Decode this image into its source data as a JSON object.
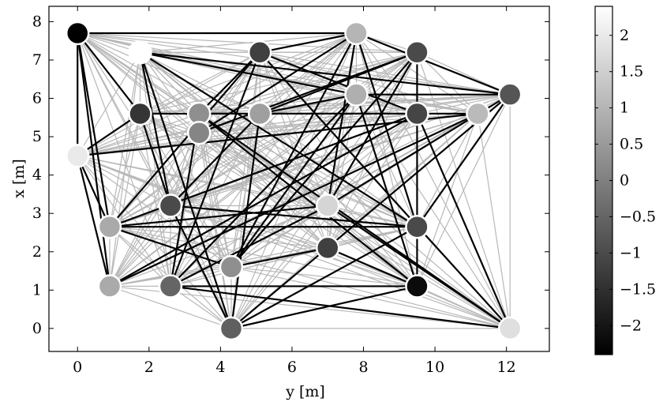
{
  "chart_data": {
    "type": "scatter",
    "xlabel": "y [m]",
    "ylabel": "x [m]",
    "xlim": [
      -0.8,
      13.2
    ],
    "ylim": [
      -0.6,
      8.4
    ],
    "xticks": [
      "0",
      "2",
      "4",
      "6",
      "8",
      "10",
      "12"
    ],
    "yticks": [
      "0",
      "1",
      "2",
      "3",
      "4",
      "5",
      "6",
      "7",
      "8"
    ],
    "grid": false,
    "colorbar": {
      "range": [
        -2.4,
        2.4
      ],
      "ticks": [
        "2",
        "1.5",
        "1",
        "0.5",
        "0",
        "−0.5",
        "−1",
        "−1.5",
        "−2"
      ],
      "colormap": "gray"
    },
    "nodes": [
      {
        "x": 0.0,
        "y": 7.7,
        "value": -2.4
      },
      {
        "x": 1.75,
        "y": 7.2,
        "value": 2.4
      },
      {
        "x": 5.1,
        "y": 7.2,
        "value": -1.2
      },
      {
        "x": 7.8,
        "y": 7.7,
        "value": 1.0
      },
      {
        "x": 9.5,
        "y": 7.2,
        "value": -1.0
      },
      {
        "x": 12.1,
        "y": 6.1,
        "value": -0.8
      },
      {
        "x": 1.75,
        "y": 5.6,
        "value": -1.4
      },
      {
        "x": 3.4,
        "y": 5.6,
        "value": 0.3
      },
      {
        "x": 3.4,
        "y": 5.1,
        "value": 0.1
      },
      {
        "x": 5.1,
        "y": 5.6,
        "value": 0.6
      },
      {
        "x": 7.8,
        "y": 6.1,
        "value": 0.9
      },
      {
        "x": 9.5,
        "y": 5.6,
        "value": -1.1
      },
      {
        "x": 11.2,
        "y": 5.6,
        "value": 1.1
      },
      {
        "x": 0.0,
        "y": 4.5,
        "value": 2.0
      },
      {
        "x": 2.6,
        "y": 3.2,
        "value": -1.0
      },
      {
        "x": 7.0,
        "y": 3.2,
        "value": 1.6
      },
      {
        "x": 0.9,
        "y": 2.65,
        "value": 0.8
      },
      {
        "x": 7.0,
        "y": 2.1,
        "value": -1.2
      },
      {
        "x": 9.5,
        "y": 2.65,
        "value": -1.0
      },
      {
        "x": 0.9,
        "y": 1.1,
        "value": 0.8
      },
      {
        "x": 2.6,
        "y": 1.1,
        "value": -0.5
      },
      {
        "x": 4.3,
        "y": 1.6,
        "value": 0.3
      },
      {
        "x": 9.5,
        "y": 1.1,
        "value": -2.2
      },
      {
        "x": 4.3,
        "y": 0.0,
        "value": -0.6
      },
      {
        "x": 12.1,
        "y": 0.0,
        "value": 1.8
      }
    ]
  }
}
